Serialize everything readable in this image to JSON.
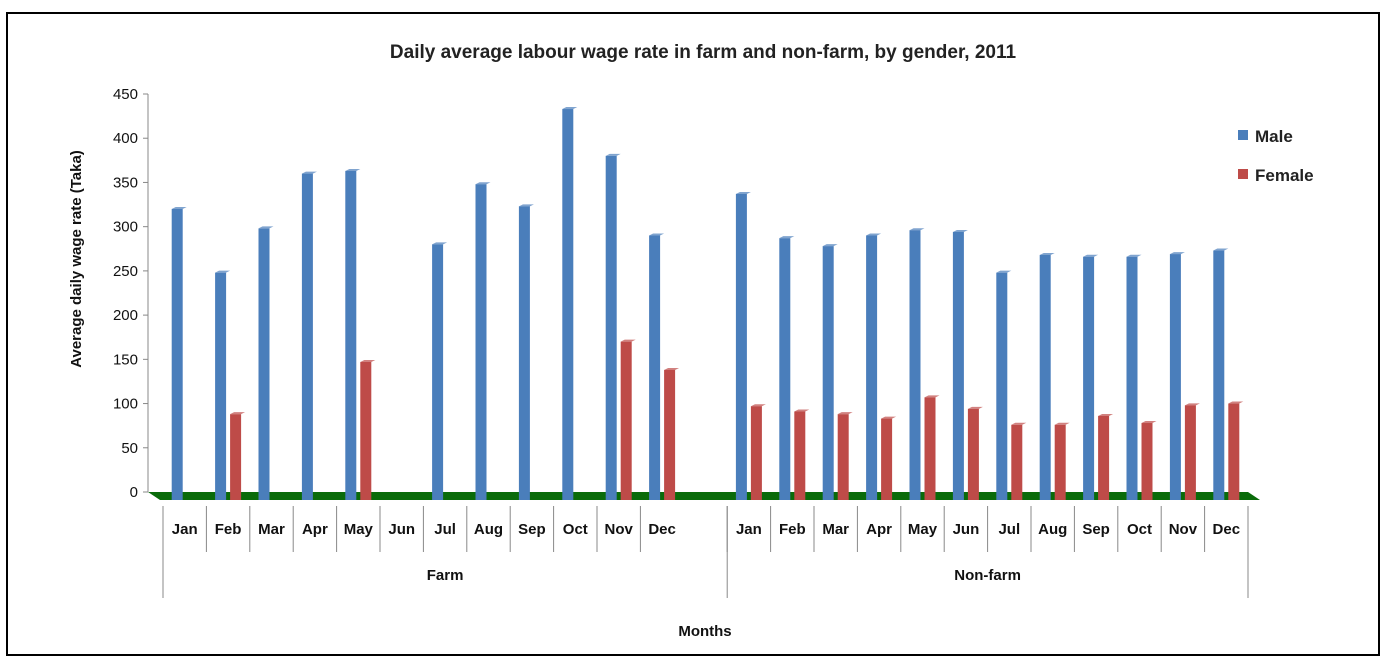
{
  "chart_data": {
    "type": "bar",
    "title": "Daily average labour wage rate in farm and non-farm, by gender, 2011",
    "xlabel": "Months",
    "ylabel": "Average daily wage rate (Taka)",
    "ylim": [
      0,
      450
    ],
    "yticks": [
      0,
      50,
      100,
      150,
      200,
      250,
      300,
      350,
      400,
      450
    ],
    "grid": false,
    "legend_position": "right",
    "groups": [
      {
        "name": "Farm",
        "categories": [
          "Jan",
          "Feb",
          "Mar",
          "Apr",
          "May",
          "Jun",
          "Jul",
          "Aug",
          "Sep",
          "Oct",
          "Nov",
          "Dec"
        ],
        "male": [
          320,
          248,
          298,
          360,
          363,
          null,
          280,
          348,
          323,
          433,
          380,
          290
        ],
        "female": [
          null,
          88,
          null,
          null,
          147,
          null,
          null,
          null,
          null,
          null,
          170,
          138
        ]
      },
      {
        "name": "Non-farm",
        "categories": [
          "Jan",
          "Feb",
          "Mar",
          "Apr",
          "May",
          "Jun",
          "Jul",
          "Aug",
          "Sep",
          "Oct",
          "Nov",
          "Dec"
        ],
        "male": [
          337,
          287,
          278,
          290,
          296,
          294,
          248,
          268,
          266,
          266,
          269,
          273
        ],
        "female": [
          97,
          91,
          88,
          83,
          107,
          94,
          76,
          76,
          86,
          78,
          98,
          100
        ]
      }
    ],
    "series": [
      {
        "name": "Male",
        "color": "#4a7ebb"
      },
      {
        "name": "Female",
        "color": "#be4b48"
      }
    ],
    "floor_color": "#0a6b0a"
  }
}
